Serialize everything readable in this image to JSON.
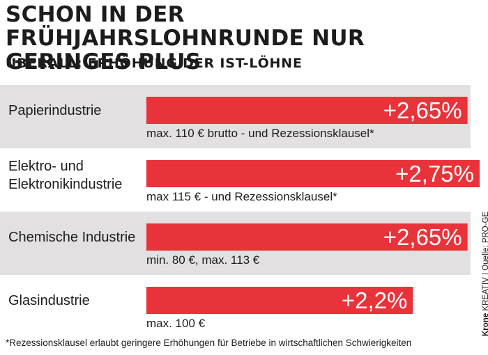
{
  "title": "SCHON IN DER FRÜHJAHRSLOHNRUNDE NUR GERINGES PLUS",
  "subtitle": "ÜBERALL: ERHÖHUNG DER IST-LÖHNE",
  "chart_data": {
    "type": "bar",
    "orientation": "horizontal",
    "title": "SCHON IN DER FRÜHJAHRSLOHNRUNDE NUR GERINGES PLUS",
    "subtitle": "ÜBERALL: ERHÖHUNG DER IST-LÖHNE",
    "categories": [
      [
        "Papierindustrie"
      ],
      [
        "Elektro- und",
        "Elektronikindustrie"
      ],
      [
        "Chemische Industrie"
      ],
      [
        "Glasindustrie"
      ]
    ],
    "values": [
      2.65,
      2.75,
      2.65,
      2.2
    ],
    "value_labels": [
      "+2,65%",
      "+2,75%",
      "+2,65%",
      "+2,2%"
    ],
    "notes": [
      "max. 110 € brutto - und Rezessionsklausel*",
      "max 115 € - und Rezessionsklausel*",
      "min. 80 €, max. 113 €",
      "max. 100 €"
    ],
    "band_shaded": [
      true,
      false,
      true,
      false
    ],
    "unit": "%",
    "xlim": [
      0,
      2.75
    ],
    "grid": false,
    "legend": "none",
    "colors": {
      "bar": "#e8333a",
      "band": "#e2e0e0",
      "text": "#1c1c1c",
      "value_text": "#ffffff"
    }
  },
  "footnote": "*Rezessionsklausel erlaubt geringere Erhöhungen für Betriebe in wirtschaftlichen Schwierigkeiten",
  "credit": {
    "brand": "Krone",
    "label": "KREATIV",
    "separator": "|",
    "source": "Quelle: PRO-GE"
  }
}
